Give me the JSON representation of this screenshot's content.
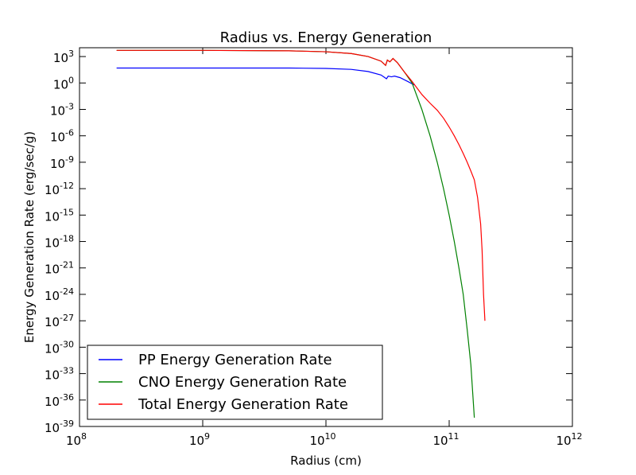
{
  "chart_data": {
    "type": "line",
    "title": "Radius vs. Energy Generation",
    "xlabel": "Radius (cm)",
    "ylabel": "Energy  Generation  Rate  (erg/sec/g)",
    "xscale": "log",
    "yscale": "log",
    "xlim": [
      100000000.0,
      1000000000000.0
    ],
    "ylim": [
      1e-39,
      10000.0
    ],
    "grid": false,
    "legend_position": "lower-left",
    "x_ticks": [
      {
        "base": "10",
        "exp": "8",
        "value": 100000000.0
      },
      {
        "base": "10",
        "exp": "9",
        "value": 1000000000.0
      },
      {
        "base": "10",
        "exp": "10",
        "value": 10000000000.0
      },
      {
        "base": "10",
        "exp": "11",
        "value": 100000000000.0
      },
      {
        "base": "10",
        "exp": "12",
        "value": 1000000000000.0
      }
    ],
    "y_ticks": [
      {
        "base": "10",
        "exp": "3",
        "value": 1000.0
      },
      {
        "base": "10",
        "exp": "0",
        "value": 1.0
      },
      {
        "base": "10",
        "exp": "-3",
        "value": 0.001
      },
      {
        "base": "10",
        "exp": "-6",
        "value": 1e-06
      },
      {
        "base": "10",
        "exp": "-9",
        "value": 1e-09
      },
      {
        "base": "10",
        "exp": "-12",
        "value": 1e-12
      },
      {
        "base": "10",
        "exp": "-15",
        "value": 1e-15
      },
      {
        "base": "10",
        "exp": "-18",
        "value": 1e-18
      },
      {
        "base": "10",
        "exp": "-21",
        "value": 1e-21
      },
      {
        "base": "10",
        "exp": "-24",
        "value": 1e-24
      },
      {
        "base": "10",
        "exp": "-27",
        "value": 1e-27
      },
      {
        "base": "10",
        "exp": "-30",
        "value": 1e-30
      },
      {
        "base": "10",
        "exp": "-33",
        "value": 1e-33
      },
      {
        "base": "10",
        "exp": "-36",
        "value": 1e-36
      },
      {
        "base": "10",
        "exp": "-39",
        "value": 1e-39
      }
    ],
    "series": [
      {
        "name": "PP Energy Generation Rate",
        "color": "#0000ff",
        "x": [
          200000000.0,
          1000000000.0,
          5000000000.0,
          10000000000.0,
          16000000000.0,
          22000000000.0,
          28000000000.0,
          31000000000.0,
          32000000000.0,
          34000000000.0,
          36000000000.0,
          40000000000.0,
          46000000000.0,
          52000000000.0
        ],
        "y": [
          50,
          50,
          50,
          45,
          35,
          20,
          8,
          3,
          6,
          5,
          6,
          4,
          1.5,
          0.6
        ]
      },
      {
        "name": "CNO Energy Generation Rate",
        "color": "#008000",
        "x": [
          200000000.0,
          1000000000.0,
          5000000000.0,
          10000000000.0,
          16000000000.0,
          22000000000.0,
          28000000000.0,
          30500000000.0,
          31500000000.0,
          33000000000.0,
          35000000000.0,
          38000000000.0,
          43000000000.0,
          50000000000.0,
          60000000000.0,
          70000000000.0,
          80000000000.0,
          90000000000.0,
          100000000000.0,
          110000000000.0,
          120000000000.0,
          130000000000.0,
          140000000000.0,
          150000000000.0,
          160000000000.0
        ],
        "y": [
          5000,
          5000,
          4500,
          3500,
          2200,
          1000,
          300,
          100,
          400,
          250,
          600,
          200,
          20,
          1,
          0.001,
          1e-06,
          1e-09,
          1e-12,
          1e-15,
          1e-18,
          1e-21,
          1e-24,
          1e-28,
          1e-32,
          1e-38
        ]
      },
      {
        "name": "Total Energy Generation Rate",
        "color": "#ff0000",
        "x": [
          200000000.0,
          1000000000.0,
          5000000000.0,
          10000000000.0,
          16000000000.0,
          22000000000.0,
          28000000000.0,
          30500000000.0,
          31500000000.0,
          33000000000.0,
          35000000000.0,
          38000000000.0,
          43000000000.0,
          50000000000.0,
          60000000000.0,
          70000000000.0,
          80000000000.0,
          90000000000.0,
          100000000000.0,
          110000000000.0,
          120000000000.0,
          130000000000.0,
          140000000000.0,
          150000000000.0,
          160000000000.0,
          170000000000.0,
          180000000000.0,
          185000000000.0,
          190000000000.0,
          195000000000.0
        ],
        "y": [
          5000,
          5000,
          4500,
          3500,
          2200,
          1000,
          300,
          100,
          400,
          250,
          600,
          200,
          20,
          1.5,
          0.05,
          0.005,
          0.0008,
          0.0001,
          1e-05,
          1e-06,
          1e-07,
          1e-08,
          1e-09,
          1e-10,
          1e-11,
          1e-13,
          1e-16,
          1e-19,
          1e-24,
          1e-27
        ]
      }
    ]
  }
}
